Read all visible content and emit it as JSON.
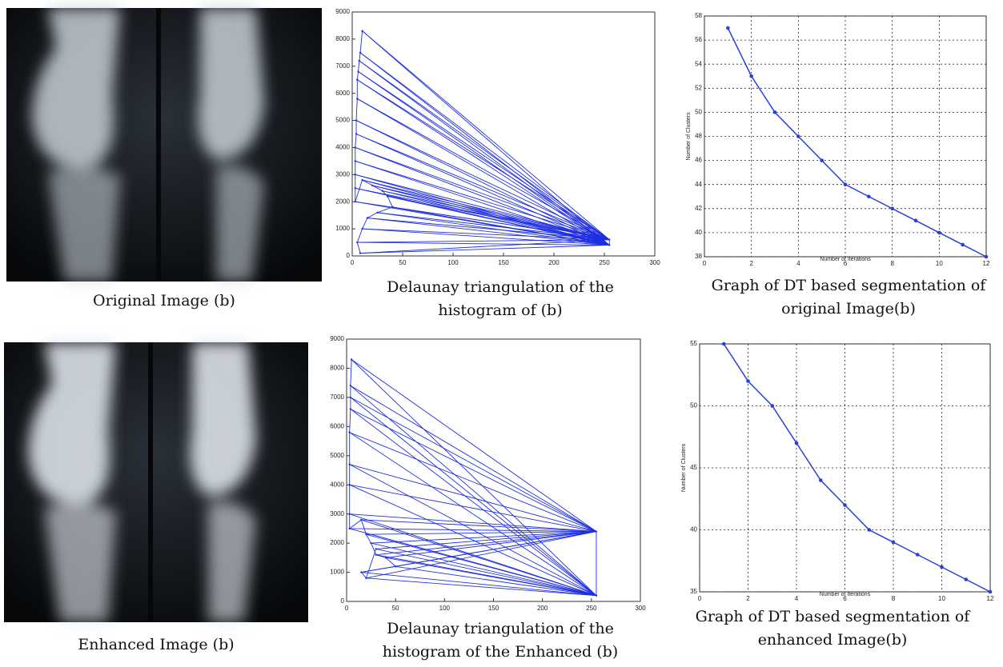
{
  "panels": [
    {
      "caption": [
        "Original Image (b)"
      ]
    },
    {
      "caption": [
        "Enhanced Image (b)"
      ]
    }
  ],
  "chart_data": [
    {
      "type": "triangulation",
      "caption": [
        "Delaunay triangulation of the",
        "histogram of (b)"
      ],
      "x": [
        10,
        8,
        7,
        6,
        5,
        5,
        4,
        4,
        3,
        3,
        3,
        3,
        3,
        10,
        20,
        30,
        35,
        40,
        25,
        15,
        10,
        5,
        8,
        255,
        255
      ],
      "values": [
        8300,
        7500,
        7200,
        6800,
        6500,
        5800,
        5000,
        4500,
        4000,
        3500,
        3000,
        2500,
        2000,
        2800,
        2600,
        2400,
        2200,
        1800,
        1600,
        1400,
        1000,
        500,
        100,
        600,
        400
      ],
      "color": "#1f2fe0",
      "xlim": [
        0,
        300
      ],
      "ylim": [
        0,
        9000
      ],
      "xticks": [
        0,
        50,
        100,
        150,
        200,
        250,
        300
      ],
      "yticks": [
        0,
        1000,
        2000,
        3000,
        4000,
        5000,
        6000,
        7000,
        8000,
        9000
      ]
    },
    {
      "type": "line",
      "caption": [
        "Graph of  DT based segmentation of",
        "original Image(b)"
      ],
      "xlabel": "Number of Iterations",
      "ylabel": "Number of Clusters",
      "x": [
        1,
        2,
        3,
        4,
        5,
        6,
        7,
        8,
        9,
        10,
        11,
        12
      ],
      "values": [
        57,
        53,
        50,
        48,
        46,
        44,
        43,
        42,
        41,
        40,
        39,
        38
      ],
      "color": "#2a3fd8",
      "xlim": [
        0,
        12
      ],
      "ylim": [
        38,
        58
      ],
      "xticks": [
        0,
        2,
        4,
        6,
        8,
        10,
        12
      ],
      "yticks": [
        38,
        40,
        42,
        44,
        46,
        48,
        50,
        52,
        54,
        56,
        58
      ],
      "grid": true
    },
    {
      "type": "triangulation",
      "caption": [
        "Delaunay triangulation of the",
        "histogram of  the Enhanced (b)"
      ],
      "x": [
        5,
        4,
        4,
        4,
        3,
        3,
        3,
        3,
        3,
        15,
        20,
        25,
        30,
        40,
        50,
        15,
        20,
        30,
        255,
        255
      ],
      "values": [
        8300,
        7400,
        7000,
        6600,
        5800,
        4700,
        4000,
        3000,
        2500,
        2800,
        2300,
        2000,
        1600,
        1500,
        1200,
        1000,
        800,
        1800,
        2400,
        200
      ],
      "color": "#1f2fe0",
      "xlim": [
        0,
        300
      ],
      "ylim": [
        0,
        9000
      ],
      "xticks": [
        0,
        50,
        100,
        150,
        200,
        250,
        300
      ],
      "yticks": [
        0,
        1000,
        2000,
        3000,
        4000,
        5000,
        6000,
        7000,
        8000,
        9000
      ]
    },
    {
      "type": "line",
      "caption": [
        "Graph of  DT based segmentation of",
        "enhanced Image(b)"
      ],
      "xlabel": "Number of Iterations",
      "ylabel": "Number of Clusters",
      "x": [
        1,
        2,
        3,
        4,
        5,
        6,
        7,
        8,
        9,
        10,
        11,
        12
      ],
      "values": [
        55,
        52,
        50,
        47,
        44,
        42,
        40,
        39,
        38,
        37,
        36,
        35
      ],
      "color": "#2a3fd8",
      "xlim": [
        0,
        12
      ],
      "ylim": [
        35,
        55
      ],
      "xticks": [
        0,
        2,
        4,
        6,
        8,
        10,
        12
      ],
      "yticks": [
        35,
        40,
        45,
        50,
        55
      ],
      "grid": true
    }
  ]
}
